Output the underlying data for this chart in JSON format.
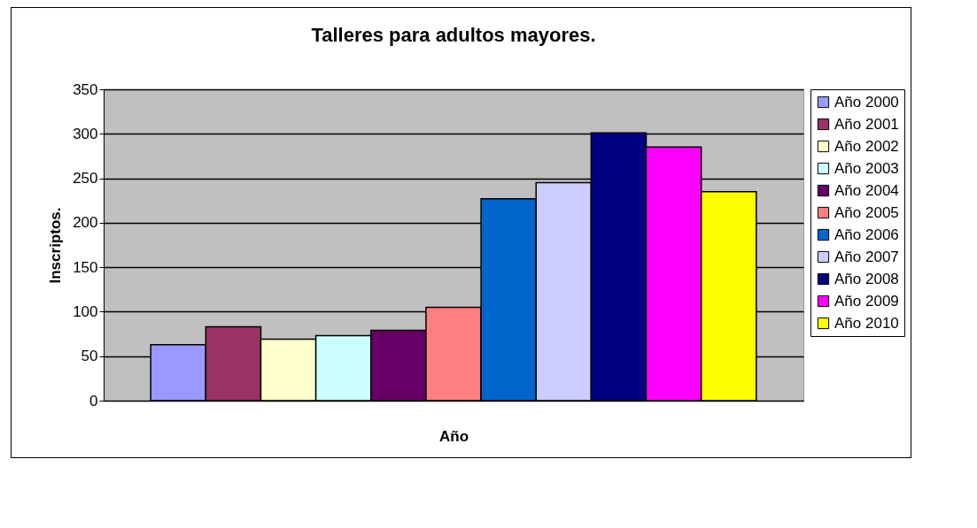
{
  "chart_data": {
    "type": "bar",
    "title": "Talleres para adultos mayores.",
    "xlabel": "Año",
    "ylabel": "Inscriptos.",
    "categories": [
      null
    ],
    "series": [
      {
        "name": "Año 2000",
        "color": "#9999ff",
        "values": [
          63
        ]
      },
      {
        "name": "Año 2001",
        "color": "#993366",
        "values": [
          83
        ]
      },
      {
        "name": "Año 2002",
        "color": "#ffffcc",
        "values": [
          69
        ]
      },
      {
        "name": "Año 2003",
        "color": "#ccffff",
        "values": [
          73
        ]
      },
      {
        "name": "Año 2004",
        "color": "#660066",
        "values": [
          79
        ]
      },
      {
        "name": "Año 2005",
        "color": "#ff8080",
        "values": [
          105
        ]
      },
      {
        "name": "Año 2006",
        "color": "#0066cc",
        "values": [
          227
        ]
      },
      {
        "name": "Año 2007",
        "color": "#ccccff",
        "values": [
          245
        ]
      },
      {
        "name": "Año 2008",
        "color": "#000080",
        "values": [
          301
        ]
      },
      {
        "name": "Año 2009",
        "color": "#ff00ff",
        "values": [
          285
        ]
      },
      {
        "name": "Año 2010",
        "color": "#ffff00",
        "values": [
          235
        ]
      }
    ],
    "ylim": [
      0,
      350
    ],
    "yticks": [
      0,
      50,
      100,
      150,
      200,
      250,
      300,
      350
    ],
    "grid": "y",
    "legend": "right"
  }
}
